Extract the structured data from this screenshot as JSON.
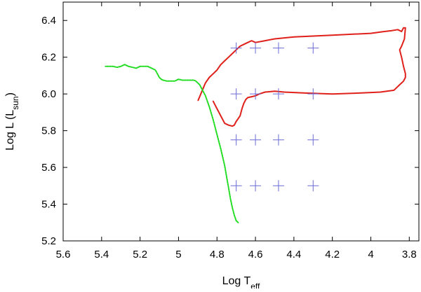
{
  "chart_data": {
    "type": "line",
    "title": "",
    "xlabel": "Log T",
    "xlabel_sub": "eff",
    "ylabel": "Log L (L",
    "ylabel_sub": "sun",
    "ylabel_close": ")",
    "xlim": [
      5.6,
      3.75
    ],
    "ylim": [
      5.2,
      6.5
    ],
    "x_inverted": true,
    "xticks": [
      5.6,
      5.4,
      5.2,
      5.0,
      4.8,
      4.6,
      4.4,
      4.2,
      4.0,
      3.8
    ],
    "xtick_labels": [
      "5.6",
      "5.4",
      "5.2",
      "5",
      "4.8",
      "4.6",
      "4.4",
      "4.2",
      "4",
      "3.8"
    ],
    "yticks": [
      5.2,
      5.4,
      5.6,
      5.8,
      6.0,
      6.2,
      6.4
    ],
    "ytick_labels": [
      "5.2",
      "5.4",
      "5.6",
      "5.8",
      "6.0",
      "6.2",
      "6.4"
    ],
    "grid": false,
    "legend": "none",
    "colors": {
      "red_track": "#e0201a",
      "green_track": "#22dd22",
      "markers": "#6b6bd6",
      "axis": "#000000"
    },
    "series": [
      {
        "style": "solid",
        "color": "#e0201a",
        "x": [
          4.898,
          4.88,
          4.86,
          4.84,
          4.82,
          4.8,
          4.78,
          4.76,
          4.74,
          4.72,
          4.7,
          4.68,
          4.66,
          4.64,
          4.62,
          4.6,
          4.55,
          4.5,
          4.4,
          4.3,
          4.2,
          4.1,
          4.0,
          3.93,
          3.89,
          3.86,
          3.84,
          3.83,
          3.82,
          3.825,
          3.84,
          3.85,
          3.84,
          3.83,
          3.82,
          3.82,
          3.83,
          3.85,
          3.87,
          3.88,
          3.95,
          4.05,
          4.2,
          4.35,
          4.45,
          4.5,
          4.55,
          4.58,
          4.6,
          4.62,
          4.64,
          4.65,
          4.66,
          4.67,
          4.68,
          4.7,
          4.71,
          4.72,
          4.74,
          4.76,
          4.77,
          4.78,
          4.79,
          4.8,
          4.81,
          4.82
        ],
        "y": [
          5.965,
          6.01,
          6.06,
          6.09,
          6.11,
          6.13,
          6.16,
          6.18,
          6.2,
          6.22,
          6.24,
          6.26,
          6.27,
          6.28,
          6.29,
          6.28,
          6.29,
          6.3,
          6.31,
          6.315,
          6.32,
          6.325,
          6.33,
          6.34,
          6.345,
          6.35,
          6.34,
          6.36,
          6.36,
          6.3,
          6.26,
          6.24,
          6.2,
          6.15,
          6.11,
          6.09,
          6.07,
          6.05,
          6.03,
          6.02,
          6.01,
          6.005,
          6.0,
          6.005,
          6.01,
          6.015,
          6.01,
          6.0,
          5.99,
          5.985,
          5.98,
          5.97,
          5.95,
          5.92,
          5.88,
          5.85,
          5.83,
          5.825,
          5.83,
          5.84,
          5.86,
          5.88,
          5.9,
          5.92,
          5.94,
          5.96
        ]
      },
      {
        "style": "dotted",
        "color": "#22dd22",
        "x": [
          4.69,
          4.7,
          4.71,
          4.72,
          4.73,
          4.74,
          4.75,
          4.76,
          4.78,
          4.8,
          4.82,
          4.84,
          4.86,
          4.88,
          4.89,
          4.9,
          4.91,
          4.92,
          4.94,
          4.96,
          4.98,
          5.0,
          5.02,
          5.04,
          5.06,
          5.08,
          5.09,
          5.1,
          5.11,
          5.12,
          5.14,
          5.16,
          5.18,
          5.2,
          5.22,
          5.24,
          5.26,
          5.28,
          5.3,
          5.32,
          5.34,
          5.36,
          5.38
        ],
        "y": [
          5.3,
          5.31,
          5.34,
          5.38,
          5.43,
          5.49,
          5.55,
          5.61,
          5.7,
          5.78,
          5.86,
          5.93,
          5.99,
          6.03,
          6.05,
          6.06,
          6.07,
          6.075,
          6.075,
          6.075,
          6.075,
          6.08,
          6.07,
          6.07,
          6.07,
          6.075,
          6.08,
          6.09,
          6.11,
          6.13,
          6.14,
          6.15,
          6.15,
          6.15,
          6.14,
          6.145,
          6.15,
          6.16,
          6.15,
          6.145,
          6.15,
          6.15,
          6.15
        ]
      }
    ],
    "markers": {
      "shape": "plus",
      "color": "#6b6bd6",
      "points": [
        {
          "x": 4.7,
          "y": 6.25
        },
        {
          "x": 4.6,
          "y": 6.25
        },
        {
          "x": 4.48,
          "y": 6.25
        },
        {
          "x": 4.3,
          "y": 6.25
        },
        {
          "x": 4.7,
          "y": 6.0
        },
        {
          "x": 4.6,
          "y": 6.0
        },
        {
          "x": 4.48,
          "y": 6.0
        },
        {
          "x": 4.3,
          "y": 6.0
        },
        {
          "x": 4.7,
          "y": 5.75
        },
        {
          "x": 4.6,
          "y": 5.75
        },
        {
          "x": 4.48,
          "y": 5.75
        },
        {
          "x": 4.3,
          "y": 5.75
        },
        {
          "x": 4.7,
          "y": 5.5
        },
        {
          "x": 4.6,
          "y": 5.5
        },
        {
          "x": 4.48,
          "y": 5.5
        },
        {
          "x": 4.3,
          "y": 5.5
        }
      ]
    }
  }
}
